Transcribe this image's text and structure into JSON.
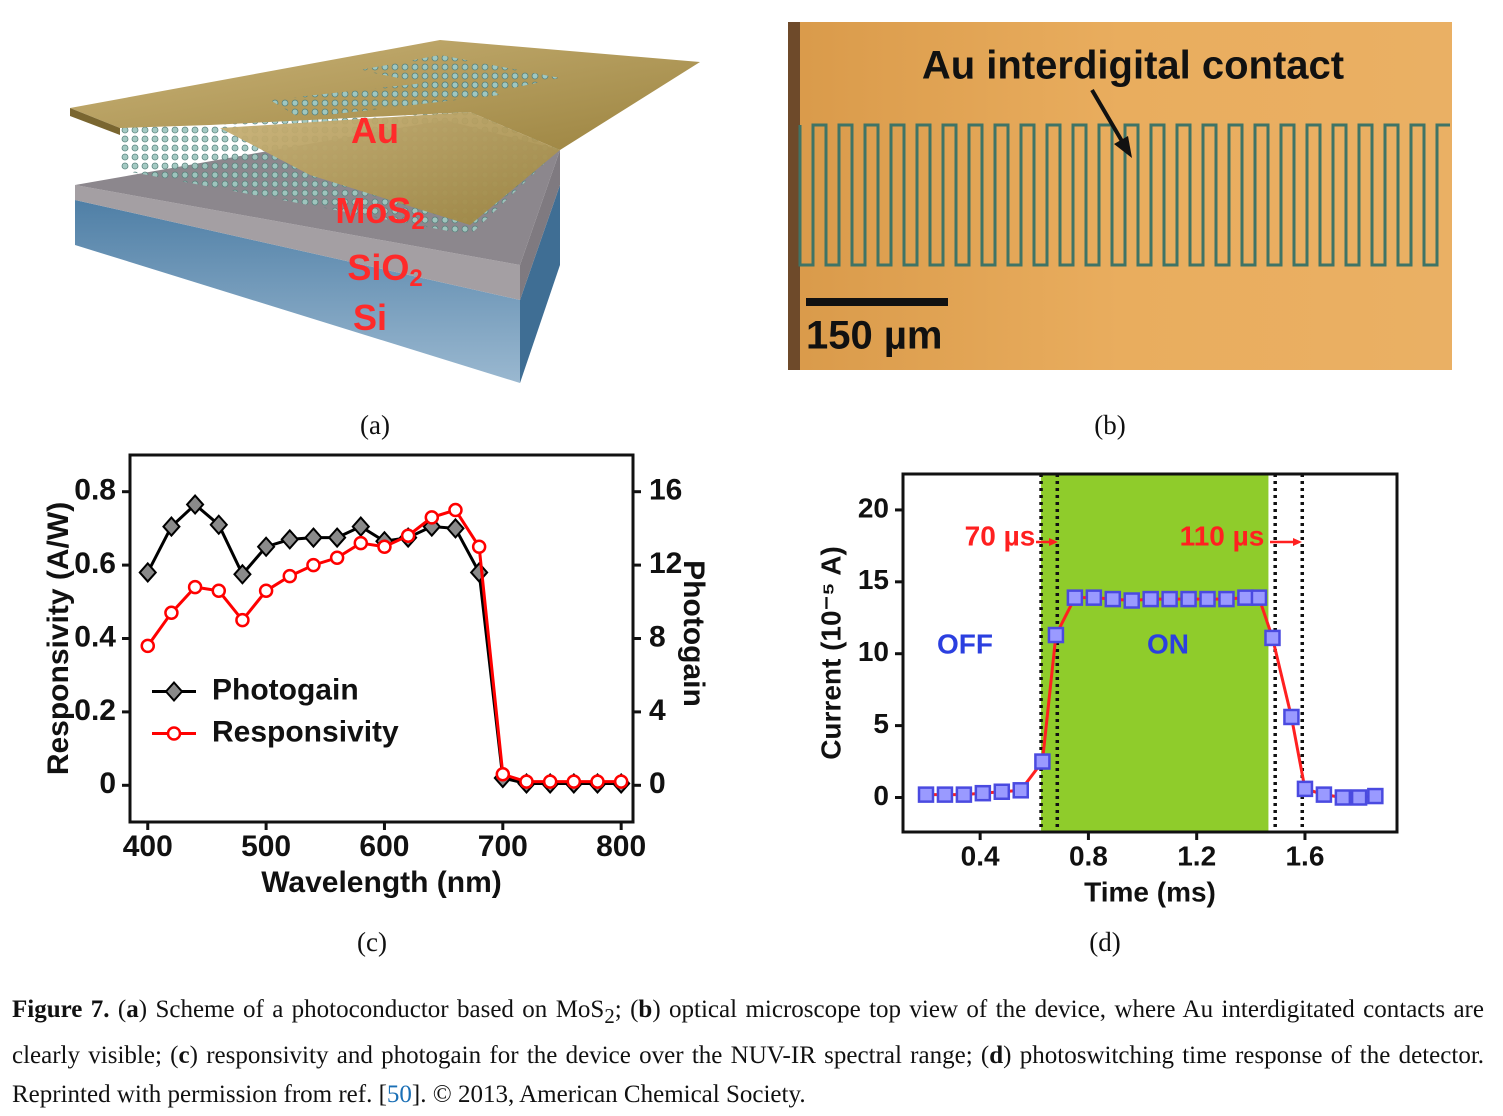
{
  "figure": {
    "panel_a": {
      "labels": [
        {
          "text": "Au"
        },
        {
          "text": "MoS",
          "sub": "2"
        },
        {
          "text": "SiO",
          "sub": "2"
        },
        {
          "text": "Si"
        }
      ]
    },
    "panel_b": {
      "annotation": "Au interdigital contact",
      "scale_bar": "150 µm"
    },
    "panel_labels": [
      "(a)",
      "(b)",
      "(c)",
      "(d)"
    ]
  },
  "chart_data": [
    {
      "type": "line",
      "xlabel": "Wavelength (nm)",
      "ylabel": "Responsivity (A/W)",
      "y2label": "Photogain",
      "xlim": [
        385,
        810
      ],
      "ylim": [
        -0.1,
        0.9
      ],
      "y2lim": [
        -2,
        18
      ],
      "xticks": [
        400,
        500,
        600,
        700,
        800
      ],
      "yticks": [
        0,
        0.2,
        0.4,
        0.6,
        0.8
      ],
      "y2ticks": [
        0,
        4,
        8,
        12,
        16
      ],
      "grid": false,
      "legend": "center left",
      "x": [
        400,
        420,
        440,
        460,
        480,
        500,
        520,
        540,
        560,
        580,
        600,
        620,
        640,
        660,
        680,
        700,
        720,
        740,
        760,
        780,
        800
      ],
      "series": [
        {
          "name": "Photogain",
          "color": "#000000",
          "marker": "diamond",
          "marker_color": "#8a8a8a",
          "axis": "y2",
          "values": [
            11.6,
            14.1,
            15.3,
            14.2,
            11.5,
            13.0,
            13.4,
            13.5,
            13.5,
            14.1,
            13.3,
            13.5,
            14.1,
            14.0,
            11.6,
            0.4,
            0.1,
            0.1,
            0.1,
            0.1,
            0.1
          ]
        },
        {
          "name": "Responsivity",
          "color": "#ff0000",
          "marker": "circle",
          "marker_color": "#ffffff",
          "values": [
            0.38,
            0.47,
            0.54,
            0.53,
            0.45,
            0.53,
            0.57,
            0.6,
            0.62,
            0.66,
            0.65,
            0.68,
            0.73,
            0.75,
            0.65,
            0.03,
            0.01,
            0.01,
            0.01,
            0.01,
            0.01
          ]
        }
      ]
    },
    {
      "type": "line",
      "xlabel": "Time (ms)",
      "ylabel": "Current (10⁻⁵ A)",
      "xlim": [
        0.115,
        1.94
      ],
      "ylim": [
        -2.4,
        22.5
      ],
      "xticks": [
        0.4,
        0.8,
        1.2,
        1.6
      ],
      "yticks": [
        0,
        5,
        10,
        15,
        20
      ],
      "grid": false,
      "shaded": {
        "range": [
          0.625,
          1.465
        ],
        "color": "#8fcc2b"
      },
      "vlines": [
        0.625,
        0.685,
        1.49,
        1.59
      ],
      "annotations": [
        "70 µs",
        "110 µs",
        "OFF",
        "ON"
      ],
      "x": [
        0.2,
        0.27,
        0.34,
        0.41,
        0.48,
        0.55,
        0.63,
        0.68,
        0.75,
        0.82,
        0.89,
        0.96,
        1.03,
        1.1,
        1.17,
        1.24,
        1.31,
        1.38,
        1.43,
        1.48,
        1.55,
        1.6,
        1.67,
        1.74,
        1.8,
        1.86
      ],
      "series": [
        {
          "color": "#ff2020",
          "marker": "square",
          "marker_color": "#9a9aff",
          "values": [
            0.2,
            0.2,
            0.2,
            0.3,
            0.4,
            0.5,
            2.5,
            11.3,
            13.9,
            13.9,
            13.8,
            13.7,
            13.8,
            13.8,
            13.8,
            13.8,
            13.8,
            13.9,
            13.9,
            11.1,
            5.6,
            0.6,
            0.2,
            0,
            0,
            0.1
          ]
        }
      ]
    }
  ],
  "caption": {
    "segments": [
      "Figure 7.",
      " (",
      "a",
      ") Scheme of a photoconductor based on MoS",
      "2",
      "; (",
      "b",
      ") optical microscope top view of the device, where Au interdigitated contacts are clearly visible; (",
      "c",
      ") responsivity and photogain for the device over the NUV-IR spectral range; (",
      "d",
      ") photoswitching time response of the detector. Reprinted with permission from ref. [",
      "50",
      "]. © 2013, American Chemical Society."
    ]
  }
}
